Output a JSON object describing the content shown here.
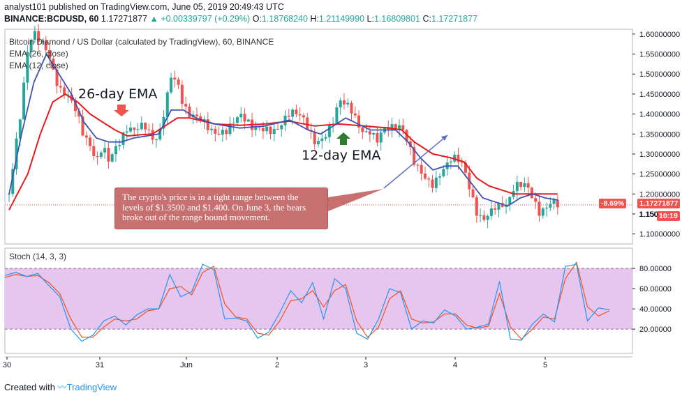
{
  "header": {
    "line1_user": "analyst101",
    "line1_text": " published on TradingView.com, June 05, 2019 20:49:43 UTC",
    "symbol": "BINANCE:BCDUSD, 60",
    "last": "1.17271877",
    "change": "+0.00339797 (+0.29%)",
    "o_label": "O:",
    "o": "1.18768240",
    "h_label": "H:",
    "h": "1.21149990",
    "l_label": "L:",
    "l": "1.16809801",
    "c_label": "C:",
    "c": "1.17271877"
  },
  "legend": {
    "title": "Bitcoin Diamond / US Dollar (calculated by TradingView), 60, BINANCE",
    "ema26": "EMA (26, close)",
    "ema12": "EMA (12, close)",
    "stoch": "Stoch (14, 3, 3)"
  },
  "annotations": {
    "ema26_label": "26-day EMA",
    "ema12_label": "12-day EMA",
    "callout": "The crypto's price is in a tight range between the levels of $1.3500 and $1.400. On June 3, the bears broke out of the range bound movement."
  },
  "price_tags": {
    "last": "1.17271877",
    "pct": "-8.69%",
    "countdown": "10:19",
    "partial_label": "1.150"
  },
  "footer": {
    "created": "Created with",
    "brand": "TradingView"
  },
  "colors": {
    "up": "#26a69a",
    "down": "#ef5350",
    "ema26": "#e8191b",
    "ema12": "#3f51b5",
    "stoch_k": "#2196f3",
    "stoch_d": "#f4511e",
    "stoch_band": "#e1bee7"
  },
  "chart_data": [
    {
      "type": "candlestick",
      "title": "Bitcoin Diamond / US Dollar (calculated by TradingView), 60, BINANCE",
      "x_ticks": [
        "30",
        "31",
        "Jun",
        "2",
        "3",
        "4",
        "5"
      ],
      "y_ticks": [
        1.1,
        1.15,
        1.2,
        1.25,
        1.3,
        1.35,
        1.4,
        1.45,
        1.5,
        1.55,
        1.6
      ],
      "y_tick_labels": [
        "1.10000000",
        "1.15000000",
        "1.20000000",
        "1.25000000",
        "1.30000000",
        "1.35000000",
        "1.40000000",
        "1.45000000",
        "1.50000000",
        "1.55000000",
        "1.60000000"
      ],
      "ylim": [
        1.075,
        1.612
      ],
      "xlim": [
        0,
        100
      ],
      "close_anchors": [
        [
          0,
          1.2
        ],
        [
          2,
          1.4
        ],
        [
          3,
          1.55
        ],
        [
          4,
          1.6
        ],
        [
          6,
          1.58
        ],
        [
          7,
          1.53
        ],
        [
          8,
          1.47
        ],
        [
          9,
          1.45
        ],
        [
          10,
          1.42
        ],
        [
          11,
          1.38
        ],
        [
          12,
          1.33
        ],
        [
          13,
          1.32
        ],
        [
          14,
          1.29
        ],
        [
          15,
          1.34
        ],
        [
          16,
          1.3
        ],
        [
          17,
          1.32
        ],
        [
          18,
          1.33
        ],
        [
          19,
          1.35
        ],
        [
          20,
          1.34
        ],
        [
          21,
          1.36
        ],
        [
          22,
          1.37
        ],
        [
          23,
          1.35
        ],
        [
          24,
          1.36
        ],
        [
          25,
          1.43
        ],
        [
          26,
          1.5
        ],
        [
          27,
          1.47
        ],
        [
          28,
          1.4
        ],
        [
          29,
          1.38
        ],
        [
          31,
          1.39
        ],
        [
          33,
          1.37
        ],
        [
          35,
          1.36
        ],
        [
          37,
          1.38
        ],
        [
          39,
          1.36
        ],
        [
          41,
          1.38
        ],
        [
          43,
          1.37
        ],
        [
          45,
          1.39
        ],
        [
          47,
          1.38
        ],
        [
          48,
          1.36
        ],
        [
          49,
          1.34
        ],
        [
          50,
          1.35
        ],
        [
          51,
          1.37
        ],
        [
          52,
          1.39
        ],
        [
          53,
          1.43
        ],
        [
          54,
          1.41
        ],
        [
          55,
          1.39
        ],
        [
          56,
          1.36
        ],
        [
          57,
          1.35
        ],
        [
          58,
          1.37
        ],
        [
          59,
          1.35
        ],
        [
          60,
          1.38
        ],
        [
          61,
          1.37
        ],
        [
          62,
          1.36
        ],
        [
          63,
          1.35
        ],
        [
          64,
          1.31
        ],
        [
          65,
          1.27
        ],
        [
          66,
          1.26
        ],
        [
          67,
          1.25
        ],
        [
          68,
          1.24
        ],
        [
          69,
          1.26
        ],
        [
          70,
          1.27
        ],
        [
          71,
          1.28
        ],
        [
          72,
          1.27
        ],
        [
          73,
          1.25
        ],
        [
          74,
          1.2
        ],
        [
          75,
          1.16
        ],
        [
          76,
          1.15
        ],
        [
          77,
          1.17
        ],
        [
          78,
          1.18
        ],
        [
          79,
          1.17
        ],
        [
          80,
          1.16
        ],
        [
          81,
          1.2
        ],
        [
          82,
          1.21
        ],
        [
          83,
          1.22
        ],
        [
          84,
          1.2
        ],
        [
          85,
          1.17
        ],
        [
          86,
          1.18
        ],
        [
          87,
          1.19
        ],
        [
          88,
          1.17
        ]
      ],
      "ema26_points": [
        [
          0,
          1.16
        ],
        [
          3,
          1.25
        ],
        [
          5,
          1.35
        ],
        [
          7,
          1.43
        ],
        [
          9,
          1.45
        ],
        [
          11,
          1.43
        ],
        [
          13,
          1.4
        ],
        [
          15,
          1.38
        ],
        [
          17,
          1.36
        ],
        [
          19,
          1.345
        ],
        [
          21,
          1.348
        ],
        [
          23,
          1.35
        ],
        [
          25,
          1.37
        ],
        [
          27,
          1.39
        ],
        [
          29,
          1.39
        ],
        [
          33,
          1.375
        ],
        [
          37,
          1.372
        ],
        [
          41,
          1.375
        ],
        [
          45,
          1.382
        ],
        [
          49,
          1.37
        ],
        [
          53,
          1.375
        ],
        [
          57,
          1.37
        ],
        [
          61,
          1.365
        ],
        [
          63,
          1.36
        ],
        [
          65,
          1.33
        ],
        [
          68,
          1.3
        ],
        [
          71,
          1.29
        ],
        [
          73,
          1.28
        ],
        [
          75,
          1.24
        ],
        [
          77,
          1.22
        ],
        [
          79,
          1.21
        ],
        [
          81,
          1.2
        ],
        [
          83,
          1.2
        ],
        [
          85,
          1.2
        ],
        [
          87,
          1.2
        ],
        [
          88,
          1.2
        ]
      ],
      "ema12_points": [
        [
          0,
          1.2
        ],
        [
          2,
          1.35
        ],
        [
          4,
          1.48
        ],
        [
          6,
          1.55
        ],
        [
          8,
          1.5
        ],
        [
          10,
          1.45
        ],
        [
          12,
          1.38
        ],
        [
          14,
          1.34
        ],
        [
          16,
          1.33
        ],
        [
          18,
          1.33
        ],
        [
          20,
          1.34
        ],
        [
          22,
          1.345
        ],
        [
          24,
          1.35
        ],
        [
          26,
          1.41
        ],
        [
          28,
          1.41
        ],
        [
          30,
          1.39
        ],
        [
          33,
          1.375
        ],
        [
          37,
          1.365
        ],
        [
          41,
          1.37
        ],
        [
          45,
          1.385
        ],
        [
          48,
          1.36
        ],
        [
          50,
          1.35
        ],
        [
          52,
          1.37
        ],
        [
          54,
          1.39
        ],
        [
          56,
          1.375
        ],
        [
          58,
          1.36
        ],
        [
          62,
          1.36
        ],
        [
          64,
          1.33
        ],
        [
          66,
          1.29
        ],
        [
          68,
          1.26
        ],
        [
          70,
          1.27
        ],
        [
          72,
          1.27
        ],
        [
          74,
          1.23
        ],
        [
          76,
          1.19
        ],
        [
          78,
          1.18
        ],
        [
          80,
          1.17
        ],
        [
          82,
          1.19
        ],
        [
          84,
          1.2
        ],
        [
          86,
          1.19
        ],
        [
          88,
          1.185
        ]
      ],
      "last_price": 1.17271877
    },
    {
      "type": "line",
      "title": "Stoch (14, 3, 3)",
      "y_ticks": [
        20,
        40,
        60,
        80
      ],
      "y_tick_labels": [
        "20.00000",
        "40.00000",
        "60.00000",
        "80.00000"
      ],
      "ylim": [
        -4,
        100
      ],
      "band": [
        20,
        80
      ],
      "series": [
        {
          "role": "k",
          "points": [
            [
              0,
              73
            ],
            [
              2,
              76
            ],
            [
              4,
              72
            ],
            [
              6,
              75
            ],
            [
              8,
              63
            ],
            [
              10,
              52
            ],
            [
              12,
              20
            ],
            [
              14,
              8
            ],
            [
              16,
              14
            ],
            [
              18,
              28
            ],
            [
              20,
              33
            ],
            [
              22,
              24
            ],
            [
              24,
              34
            ],
            [
              26,
              40
            ],
            [
              28,
              40
            ],
            [
              30,
              74
            ],
            [
              32,
              52
            ],
            [
              34,
              57
            ],
            [
              36,
              84
            ],
            [
              38,
              79
            ],
            [
              40,
              30
            ],
            [
              42,
              31
            ],
            [
              44,
              28
            ],
            [
              46,
              11
            ],
            [
              48,
              17
            ],
            [
              50,
              36
            ],
            [
              52,
              58
            ],
            [
              54,
              46
            ],
            [
              56,
              66
            ],
            [
              58,
              30
            ],
            [
              60,
              70
            ],
            [
              62,
              60
            ],
            [
              64,
              16
            ],
            [
              66,
              10
            ],
            [
              68,
              30
            ],
            [
              70,
              60
            ],
            [
              72,
              56
            ],
            [
              74,
              20
            ],
            [
              76,
              28
            ],
            [
              78,
              26
            ],
            [
              80,
              39
            ],
            [
              82,
              33
            ],
            [
              84,
              20
            ],
            [
              86,
              22
            ],
            [
              88,
              25
            ],
            [
              90,
              67
            ],
            [
              92,
              10
            ],
            [
              94,
              9
            ],
            [
              96,
              25
            ],
            [
              98,
              35
            ],
            [
              100,
              27
            ],
            [
              102,
              82
            ],
            [
              104,
              84
            ],
            [
              106,
              28
            ],
            [
              108,
              41
            ],
            [
              110,
              39
            ]
          ]
        },
        {
          "role": "d",
          "points": [
            [
              0,
              71
            ],
            [
              2,
              74
            ],
            [
              4,
              72
            ],
            [
              6,
              73
            ],
            [
              8,
              66
            ],
            [
              10,
              55
            ],
            [
              12,
              30
            ],
            [
              14,
              12
            ],
            [
              16,
              12
            ],
            [
              18,
              22
            ],
            [
              20,
              30
            ],
            [
              22,
              28
            ],
            [
              24,
              30
            ],
            [
              26,
              38
            ],
            [
              28,
              40
            ],
            [
              30,
              60
            ],
            [
              32,
              62
            ],
            [
              34,
              54
            ],
            [
              36,
              76
            ],
            [
              38,
              82
            ],
            [
              40,
              45
            ],
            [
              42,
              32
            ],
            [
              44,
              30
            ],
            [
              46,
              16
            ],
            [
              48,
              14
            ],
            [
              50,
              28
            ],
            [
              52,
              48
            ],
            [
              54,
              50
            ],
            [
              56,
              58
            ],
            [
              58,
              42
            ],
            [
              60,
              58
            ],
            [
              62,
              64
            ],
            [
              64,
              28
            ],
            [
              66,
              12
            ],
            [
              68,
              22
            ],
            [
              70,
              50
            ],
            [
              72,
              58
            ],
            [
              74,
              30
            ],
            [
              76,
              26
            ],
            [
              78,
              27
            ],
            [
              80,
              35
            ],
            [
              82,
              35
            ],
            [
              84,
              24
            ],
            [
              86,
              21
            ],
            [
              88,
              23
            ],
            [
              90,
              55
            ],
            [
              92,
              22
            ],
            [
              94,
              10
            ],
            [
              96,
              20
            ],
            [
              98,
              32
            ],
            [
              100,
              30
            ],
            [
              102,
              70
            ],
            [
              104,
              86
            ],
            [
              106,
              42
            ],
            [
              108,
              33
            ],
            [
              110,
              38
            ]
          ]
        }
      ]
    }
  ]
}
